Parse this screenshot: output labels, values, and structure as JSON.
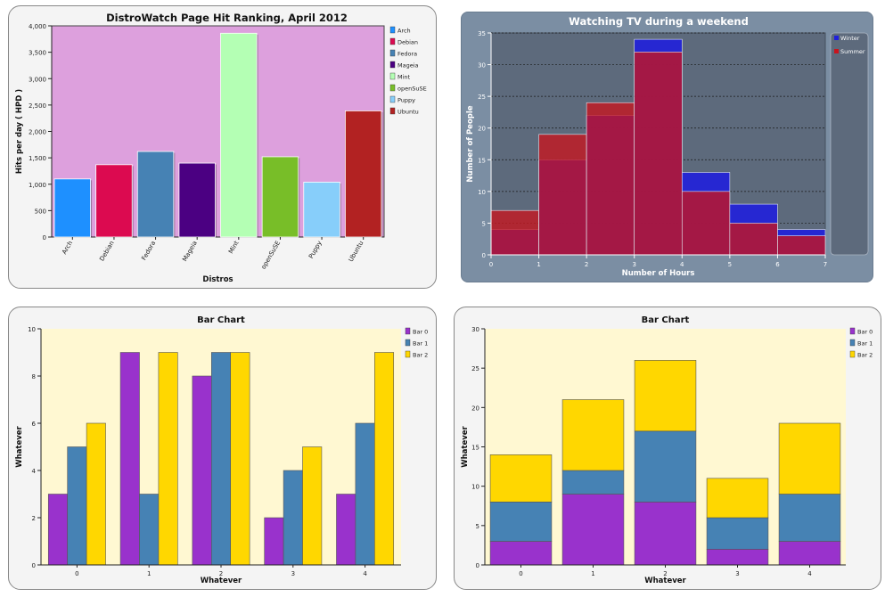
{
  "chart_data": [
    {
      "type": "bar",
      "title": "DistroWatch Page Hit Ranking, April 2012",
      "xlabel": "Distros",
      "ylabel": "Hits per day ( HPD )",
      "ylim": [
        0,
        4000
      ],
      "yticks": [
        "0",
        "500",
        "1,000",
        "1,500",
        "2,000",
        "2,500",
        "3,000",
        "3,500",
        "4,000"
      ],
      "categories": [
        "Arch",
        "Debian",
        "Fedora",
        "Mageia",
        "Mint",
        "openSuSE",
        "Puppy",
        "Ubuntu"
      ],
      "values": [
        1100,
        1370,
        1620,
        1400,
        3860,
        1520,
        1040,
        2390
      ],
      "colors": [
        "#1e90ff",
        "#dc0a50",
        "#4682b4",
        "#4b0082",
        "#b4ffb4",
        "#78be28",
        "#87cefa",
        "#b22222"
      ],
      "plot_background": "#dda0dd",
      "legend": [
        "Arch",
        "Debian",
        "Fedora",
        "Mageia",
        "Mint",
        "openSuSE",
        "Puppy",
        "Ubuntu"
      ],
      "legend_position": "right"
    },
    {
      "type": "bar",
      "title": "Watching TV during a weekend",
      "xlabel": "Number of Hours",
      "ylabel": "Number of People",
      "xlim": [
        0,
        7
      ],
      "ylim": [
        0,
        35
      ],
      "xticks": [
        "0",
        "1",
        "2",
        "3",
        "4",
        "5",
        "6",
        "7"
      ],
      "yticks": [
        "0",
        "5",
        "10",
        "15",
        "20",
        "25",
        "30",
        "35"
      ],
      "series": [
        {
          "name": "Winter",
          "color": "#2020dc",
          "values": [
            4,
            15,
            22,
            34,
            13,
            8,
            4
          ]
        },
        {
          "name": "Summer",
          "color": "#c8141e",
          "values": [
            7,
            19,
            24,
            32,
            10,
            5,
            3
          ]
        }
      ],
      "plot_background": "#5d6a7c",
      "legend_position": "right"
    },
    {
      "type": "bar",
      "title": "Bar Chart",
      "xlabel": "Whatever",
      "ylabel": "Whatever",
      "ylim": [
        0,
        10
      ],
      "yticks": [
        "0",
        "2",
        "4",
        "6",
        "8",
        "10"
      ],
      "categories": [
        "0",
        "1",
        "2",
        "3",
        "4"
      ],
      "series": [
        {
          "name": "Bar 0",
          "color": "#9932cc",
          "values": [
            3,
            9,
            8,
            2,
            3
          ]
        },
        {
          "name": "Bar 1",
          "color": "#4682b4",
          "values": [
            5,
            3,
            9,
            4,
            6
          ]
        },
        {
          "name": "Bar 2",
          "color": "#ffd700",
          "values": [
            6,
            9,
            9,
            5,
            9
          ]
        }
      ],
      "plot_background": "#fff8d2",
      "legend_position": "right"
    },
    {
      "type": "bar",
      "stacked": true,
      "title": "Bar Chart",
      "xlabel": "Whatever",
      "ylabel": "Whatever",
      "ylim": [
        0,
        30
      ],
      "yticks": [
        "0",
        "5",
        "10",
        "15",
        "20",
        "25",
        "30"
      ],
      "categories": [
        "0",
        "1",
        "2",
        "3",
        "4"
      ],
      "series": [
        {
          "name": "Bar 0",
          "color": "#9932cc",
          "values": [
            3,
            9,
            8,
            2,
            3
          ]
        },
        {
          "name": "Bar 1",
          "color": "#4682b4",
          "values": [
            5,
            3,
            9,
            4,
            6
          ]
        },
        {
          "name": "Bar 2",
          "color": "#ffd700",
          "values": [
            6,
            9,
            9,
            5,
            9
          ]
        }
      ],
      "plot_background": "#fff8d2",
      "legend_position": "right"
    }
  ]
}
